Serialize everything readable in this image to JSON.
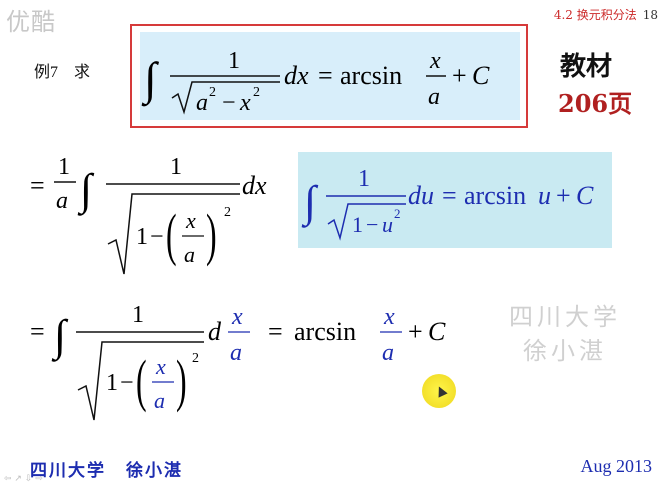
{
  "watermark_top": "优酷",
  "header": {
    "section": "4.2 换元积分法",
    "page": "18"
  },
  "example": {
    "label": "例7",
    "verb": "求"
  },
  "textbook": {
    "title": "教材",
    "page": "206页"
  },
  "watermark_right": {
    "line1": "四川大学",
    "line2": "徐小湛"
  },
  "footer": {
    "university": "四川大学",
    "author": "徐小湛",
    "date": "Aug 2013"
  },
  "nav": "⇦ ↗ ⇩ ⇨",
  "colors": {
    "red_border": "#d63a3a",
    "box_fill": "#d8eefa",
    "blue_box": "#c9eaf2",
    "accent_blue": "#1d2db0",
    "page_red": "#b02020"
  }
}
